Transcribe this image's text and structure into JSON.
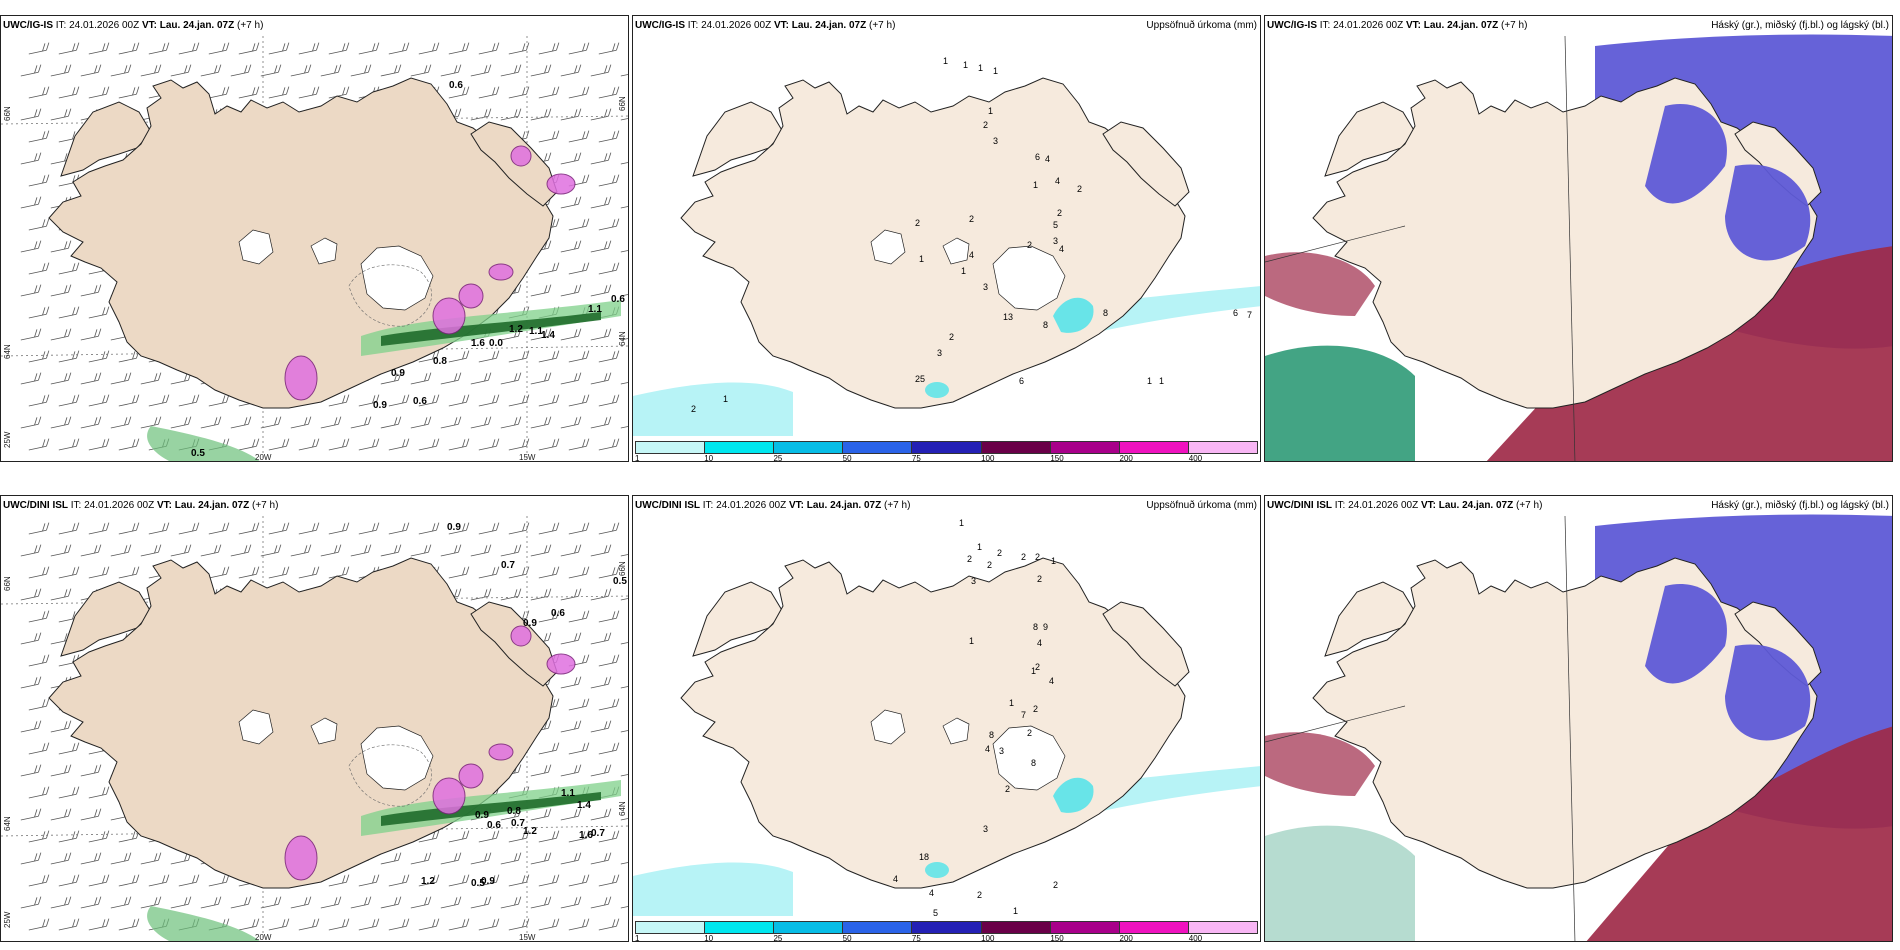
{
  "colors": {
    "land": "#f6eadd",
    "land_wind": "#ecd9c5",
    "coast": "#222222",
    "precip_light": "#b7f3f6",
    "precip_mid": "#4fe3ea",
    "cloud_high": "#9e2a48",
    "cloud_mid": "#5e5ad6",
    "cloud_low": "#2f9a77",
    "wind_green": "#2e8b3a",
    "magenta": "#e070e0"
  },
  "rows": [
    {
      "model": "UWC/IG-IS",
      "wind_panel": {
        "title_model": "UWC/IG-IS",
        "it_label": "IT: 24.01.2026 00Z",
        "vt_label": "VT: Lau. 24.jan. 07Z",
        "lead": "(+7 h)",
        "lat_labels": [
          "66N",
          "64N"
        ],
        "lat_labels_right": [
          "66N",
          "64N"
        ],
        "lon_labels": [
          "20W",
          "15W"
        ],
        "lon_left": "25W",
        "gust_values": [
          "0.6",
          "1.1",
          "0.6",
          "1.2",
          "1.1",
          "1.4",
          "0.0",
          "1.6",
          "0.8",
          "0.9",
          "0.6",
          "0.5",
          "0.9"
        ]
      },
      "precip_panel": {
        "title_model": "UWC/IG-IS",
        "it_label": "IT: 24.01.2026 00Z",
        "vt_label": "VT: Lau. 24.jan. 07Z",
        "lead": "(+7 h)",
        "right_title": "Uppsöfnuð úrkoma (mm)",
        "values": [
          "1",
          "1",
          "1",
          "1",
          "2",
          "1",
          "3",
          "6",
          "4",
          "4",
          "2",
          "1",
          "2",
          "5",
          "3",
          "4",
          "2",
          "2",
          "4",
          "1",
          "3",
          "2",
          "8",
          "13",
          "6",
          "7",
          "2",
          "1",
          "8",
          "3",
          "25",
          "6",
          "1",
          "1",
          "2",
          "1"
        ],
        "colorbar": [
          "1",
          "10",
          "25",
          "50",
          "75",
          "100",
          "150",
          "200",
          "400",
          ""
        ]
      },
      "cloud_panel": {
        "title_model": "UWC/IG-IS",
        "it_label": "IT: 24.01.2026 00Z",
        "vt_label": "VT: Lau. 24.jan. 07Z",
        "lead": "(+7 h)",
        "right_title": "Háský (gr.), miðský (fj.bl.) og lágský (bl.)"
      }
    },
    {
      "model": "UWC/DINI ISL",
      "wind_panel": {
        "title_model": "UWC/DINI ISL",
        "it_label": "IT: 24.01.2026 00Z",
        "vt_label": "VT: Lau. 24.jan. 07Z",
        "lead": "(+7 h)",
        "lat_labels": [
          "66N",
          "64N"
        ],
        "lat_labels_right": [
          "66N",
          "64N"
        ],
        "lon_labels": [
          "20W",
          "15W"
        ],
        "lon_left": "25W",
        "gust_values": [
          "0.9",
          "0.7",
          "0.5",
          "0.6",
          "0.9",
          "1.1",
          "1.4",
          "0.8",
          "0.7",
          "1.2",
          "0.9",
          "0.6",
          "0.7",
          "1.6",
          "0.5",
          "0.9",
          "1.2"
        ]
      },
      "precip_panel": {
        "title_model": "UWC/DINI ISL",
        "it_label": "IT: 24.01.2026 00Z",
        "vt_label": "VT: Lau. 24.jan. 07Z",
        "lead": "(+7 h)",
        "right_title": "Uppsöfnuð úrkoma (mm)",
        "values": [
          "1",
          "1",
          "2",
          "2",
          "3",
          "2",
          "2",
          "2",
          "1",
          "2",
          "8",
          "9",
          "4",
          "1",
          "1",
          "1",
          "4",
          "2",
          "2",
          "7",
          "2",
          "3",
          "8",
          "4",
          "8",
          "2",
          "3",
          "18",
          "4",
          "4",
          "5",
          "2",
          "1",
          "2"
        ],
        "colorbar": [
          "1",
          "10",
          "25",
          "50",
          "75",
          "100",
          "150",
          "200",
          "400",
          ""
        ]
      },
      "cloud_panel": {
        "title_model": "UWC/DINI ISL",
        "it_label": "IT: 24.01.2026 00Z",
        "vt_label": "VT: Lau. 24.jan. 07Z",
        "lead": "(+7 h)",
        "right_title": "Háský (gr.), miðský (fj.bl.) og lágský (bl.)"
      }
    }
  ]
}
